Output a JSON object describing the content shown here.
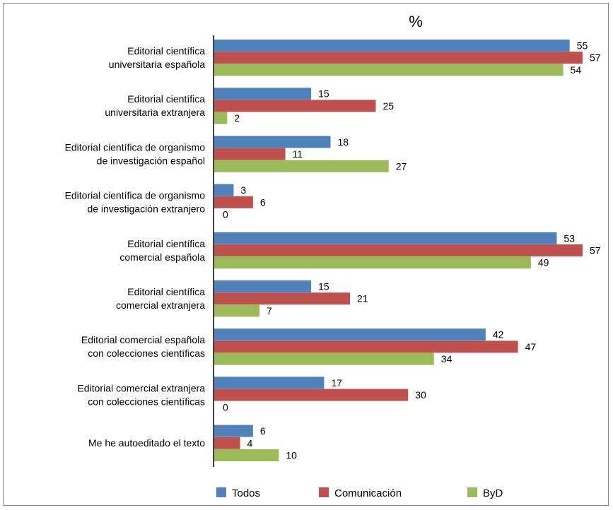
{
  "chart_data": {
    "type": "bar",
    "orientation": "horizontal",
    "title": "%",
    "categories": [
      [
        "Editorial científica",
        "universitaria española"
      ],
      [
        "Editorial científica",
        "universitaria extranjera"
      ],
      [
        "Editorial científica de organismo",
        "de investigación español"
      ],
      [
        "Editorial científica de organismo",
        "de investigación extranjero"
      ],
      [
        "Editorial científica",
        "comercial española"
      ],
      [
        "Editorial científica",
        "comercial extranjera"
      ],
      [
        "Editorial comercial española",
        "con colecciones científicas"
      ],
      [
        "Editorial comercial extranjera",
        "con colecciones científicas"
      ],
      [
        "Me he autoeditado el texto"
      ]
    ],
    "series": [
      {
        "name": "Todos",
        "color": "#4f81bd",
        "values": [
          55,
          15,
          18,
          3,
          53,
          15,
          42,
          17,
          6
        ]
      },
      {
        "name": "Comunicación",
        "color": "#c0504d",
        "values": [
          57,
          25,
          11,
          6,
          57,
          21,
          47,
          30,
          4
        ]
      },
      {
        "name": "ByD",
        "color": "#9bbb59",
        "values": [
          54,
          2,
          27,
          0,
          49,
          7,
          34,
          0,
          10
        ]
      }
    ],
    "xlim": [
      0,
      60
    ],
    "grid": false,
    "legend_position": "bottom"
  }
}
